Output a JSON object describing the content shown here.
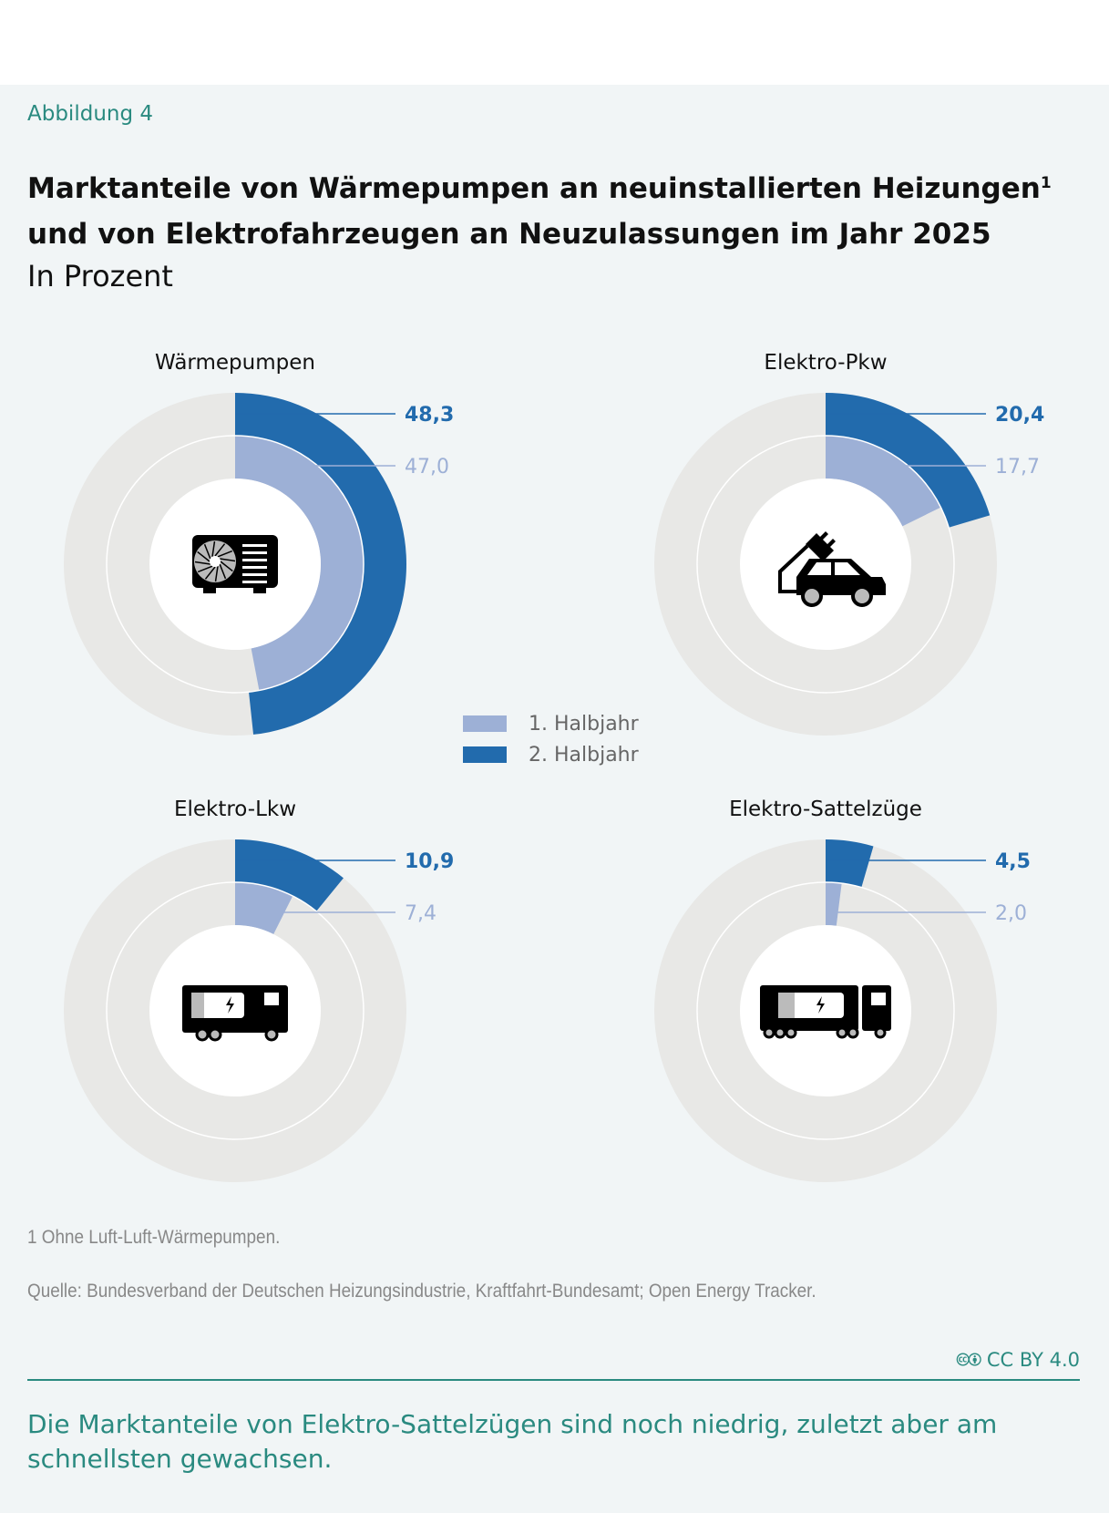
{
  "figure_label": "Abbildung 4",
  "title_line1": "Marktanteile von Wärmepumpen an neuinstallierten Heizungen",
  "title_sup": "1",
  "title_line2": "und von Elektrofahrzeugen an Neuzulassungen im Jahr 2025",
  "subtitle": "In Prozent",
  "legend": [
    {
      "label": "1. Halbjahr",
      "color": "#9db0d6"
    },
    {
      "label": "2. Halbjahr",
      "color": "#226bad"
    }
  ],
  "footnote": "1  Ohne Luft-Luft-Wärmepumpen.",
  "source": "Quelle: Bundesverband der Deutschen Heizungsindustrie, Kraftfahrt-Bundesamt; Open Energy Tracker.",
  "license": "CC BY 4.0",
  "message": "Die Marktanteile von Elektro-Sattelzügen sind noch niedrig, zuletzt aber am schnells­ten gewachsen.",
  "colors": {
    "h1": "#9db0d6",
    "h2": "#226bad",
    "track": "#e8e8e6",
    "accent": "#2a8a80"
  },
  "chart_data": [
    {
      "type": "pie",
      "subtype": "nested-donut",
      "title": "Wärmepumpen",
      "icon": "heat-pump-icon",
      "series": [
        {
          "name": "1. Halbjahr",
          "value": 47.0,
          "label": "47,0"
        },
        {
          "name": "2. Halbjahr",
          "value": 48.3,
          "label": "48,3"
        }
      ],
      "max": 100
    },
    {
      "type": "pie",
      "subtype": "nested-donut",
      "title": "Elektro-Pkw",
      "icon": "electric-car-icon",
      "series": [
        {
          "name": "1. Halbjahr",
          "value": 17.7,
          "label": "17,7"
        },
        {
          "name": "2. Halbjahr",
          "value": 20.4,
          "label": "20,4"
        }
      ],
      "max": 100
    },
    {
      "type": "pie",
      "subtype": "nested-donut",
      "title": "Elektro-Lkw",
      "icon": "electric-truck-icon",
      "series": [
        {
          "name": "1. Halbjahr",
          "value": 7.4,
          "label": "7,4"
        },
        {
          "name": "2. Halbjahr",
          "value": 10.9,
          "label": "10,9"
        }
      ],
      "max": 100
    },
    {
      "type": "pie",
      "subtype": "nested-donut",
      "title": "Elektro-Sattelzüge",
      "icon": "electric-semi-truck-icon",
      "series": [
        {
          "name": "1. Halbjahr",
          "value": 2.0,
          "label": "2,0"
        },
        {
          "name": "2. Halbjahr",
          "value": 4.5,
          "label": "4,5"
        }
      ],
      "max": 100
    }
  ]
}
